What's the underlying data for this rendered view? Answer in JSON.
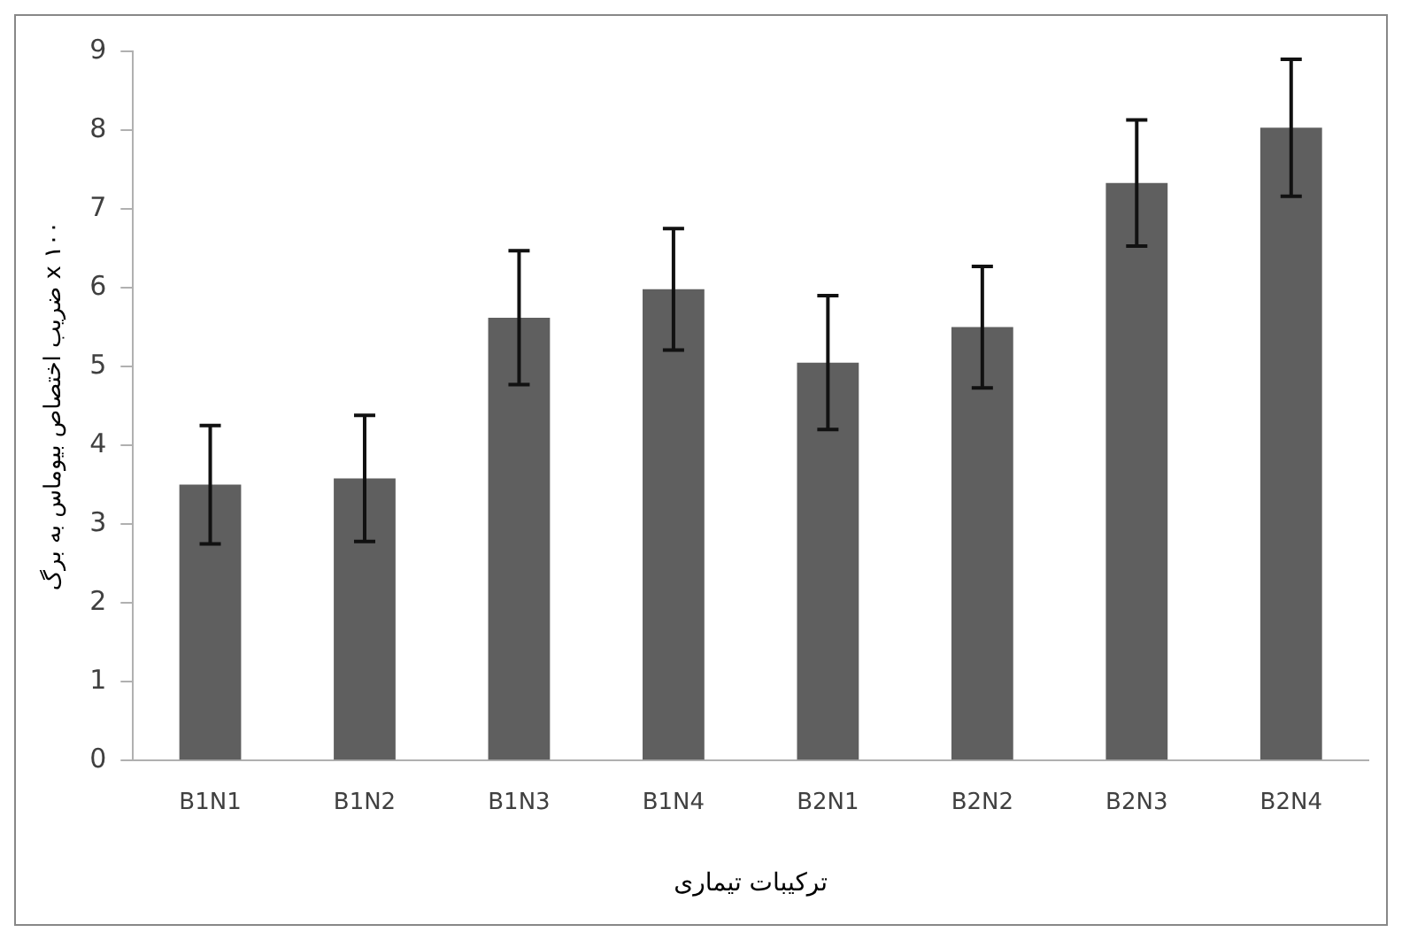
{
  "chart_data": {
    "type": "bar",
    "xlabel": "ترکیبات تیماری",
    "ylabel": "ضریب اختصاص بیوماس به برگ x ۱۰۰",
    "categories": [
      "B1N1",
      "B1N2",
      "B1N3",
      "B1N4",
      "B2N1",
      "B2N2",
      "B2N3",
      "B2N4"
    ],
    "values": [
      3.5,
      3.58,
      5.62,
      5.98,
      5.05,
      5.5,
      7.33,
      8.03
    ],
    "errors": [
      0.75,
      0.8,
      0.85,
      0.77,
      0.85,
      0.77,
      0.8,
      0.87
    ],
    "color": "#5f5f5f",
    "ylim": [
      0,
      9
    ],
    "yticks": [
      0,
      1,
      2,
      3,
      4,
      5,
      6,
      7,
      8,
      9
    ],
    "grid": false,
    "legend": false
  }
}
